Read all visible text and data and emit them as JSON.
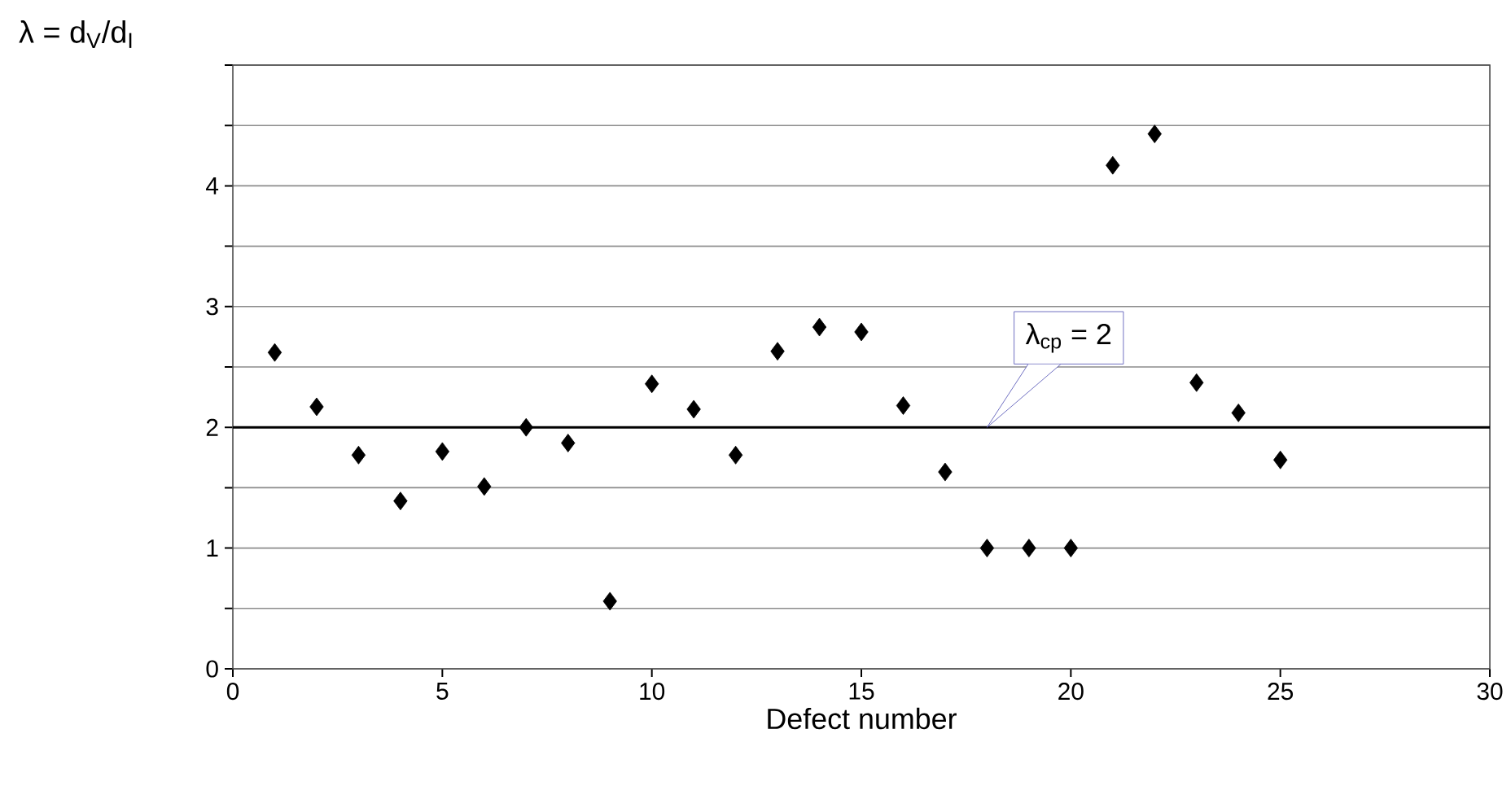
{
  "chart_data": {
    "type": "scatter",
    "xlabel": "Defect number",
    "ylabel": "λ = d$_{V}$/d$_{I}$",
    "x": [
      1,
      2,
      3,
      4,
      5,
      6,
      7,
      8,
      9,
      10,
      11,
      12,
      13,
      14,
      15,
      16,
      17,
      18,
      19,
      20,
      21,
      22,
      23,
      24,
      25
    ],
    "series": [
      {
        "color": "#000000",
        "values": [
          2.62,
          2.17,
          1.77,
          1.39,
          1.8,
          1.51,
          2.0,
          1.87,
          0.56,
          2.36,
          2.15,
          1.77,
          2.63,
          2.83,
          2.79,
          2.18,
          1.63,
          1.0,
          1.0,
          1.0,
          4.17,
          4.43,
          2.37,
          2.12,
          1.73
        ]
      }
    ],
    "xlim": [
      0,
      30
    ],
    "xticks": [
      0,
      5,
      10,
      15,
      20,
      25,
      30
    ],
    "ylim": [
      0,
      5
    ],
    "yticks": [
      0,
      {
        "value": 0.5,
        "label": null
      },
      1,
      {
        "value": 1.5,
        "label": null
      },
      2,
      {
        "value": 2.5,
        "label": null
      },
      3,
      {
        "value": 3.5,
        "label": null
      },
      4,
      {
        "value": 4.5,
        "label": null
      },
      {
        "value": 5,
        "label": null
      }
    ],
    "grid": "y",
    "marker": "diamond",
    "ref_lines": [
      {
        "axis": "y",
        "value": 2,
        "label": "λ$_{cp}$ = 2",
        "color": "#000000"
      }
    ]
  }
}
